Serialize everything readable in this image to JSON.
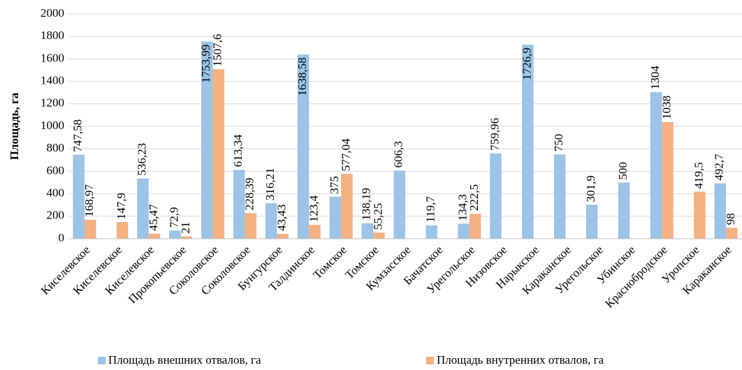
{
  "chart_data": {
    "type": "bar",
    "y_label": "Площадь, га",
    "categories": [
      "Киселевское",
      "Киселевское",
      "Киселевское",
      "Прокопьевское",
      "Соколовское",
      "Соколовское",
      "Бунгурское",
      "Талдинское",
      "Томское",
      "Томское",
      "Кумзасское",
      "Бачатское",
      "Урегольское",
      "Низовское",
      "Нарыкское",
      "Караканское",
      "Урегольское",
      "Убинское",
      "Краснобродское",
      "Уропское",
      "Караканское"
    ],
    "series": [
      {
        "name": "Площадь внешних отвалов, га",
        "color": "#9dc3e6",
        "values": [
          747.58,
          null,
          536.23,
          72.9,
          1753.99,
          613.34,
          316.21,
          1638.58,
          375,
          138.19,
          606.3,
          119.7,
          134.3,
          759.96,
          1726.9,
          750,
          301.9,
          500,
          1304,
          null,
          492.7
        ],
        "value_labels": [
          "747,58",
          null,
          "536,23",
          "72,9",
          "1753,99",
          "613,34",
          "316,21",
          "1638,58",
          "375",
          "138,19",
          "606,3",
          "119,7",
          "134,3",
          "759,96",
          "1726,9",
          "750",
          "301,9",
          "500",
          "1304",
          null,
          "492,7"
        ]
      },
      {
        "name": "Площадь внутренних отвалов, га",
        "color": "#f4b183",
        "values": [
          168.97,
          147.9,
          45.47,
          21,
          1507.6,
          228.39,
          43.43,
          123.4,
          577.04,
          55.25,
          null,
          null,
          222.5,
          null,
          null,
          null,
          null,
          null,
          1038,
          419.5,
          98
        ],
        "value_labels": [
          "168,97",
          "147,9",
          "45,47",
          "21",
          "1507,6",
          "228,39",
          "43,43",
          "123,4",
          "577,04",
          "55,25",
          null,
          null,
          "222,5",
          null,
          null,
          null,
          null,
          null,
          "1038",
          "419,5",
          "98"
        ]
      }
    ],
    "ylim": [
      0,
      2000
    ],
    "yticks": [
      0,
      200,
      400,
      600,
      800,
      1000,
      1200,
      1400,
      1600,
      1800,
      2000
    ],
    "grid": true
  }
}
